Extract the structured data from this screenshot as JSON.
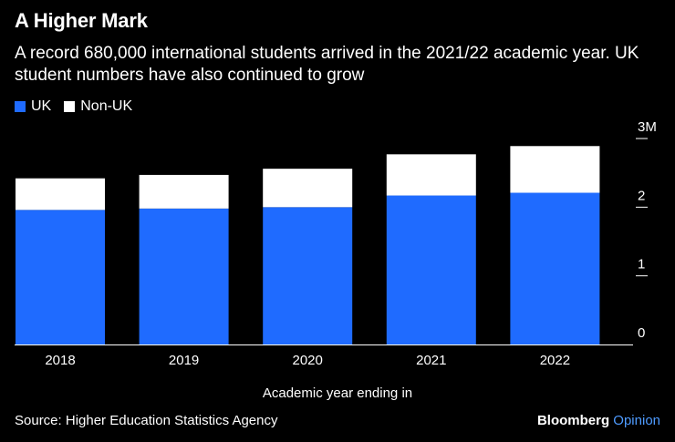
{
  "header": {
    "title": "A Higher Mark",
    "subtitle": "A record 680,000 international students arrived in the 2021/22 academic year. UK student numbers have also continued to grow"
  },
  "legend": {
    "items": [
      {
        "label": "UK",
        "color": "#1f6bff"
      },
      {
        "label": "Non-UK",
        "color": "#ffffff"
      }
    ]
  },
  "footer": {
    "source": "Source: Higher Education Statistics Agency",
    "brand_primary": "Bloomberg",
    "brand_secondary": "Opinion"
  },
  "chart_data": {
    "type": "bar",
    "stacked": true,
    "categories": [
      "2018",
      "2019",
      "2020",
      "2021",
      "2022"
    ],
    "series": [
      {
        "name": "UK",
        "color": "#1f6bff",
        "values": [
          1.96,
          1.98,
          2.0,
          2.17,
          2.21
        ]
      },
      {
        "name": "Non-UK",
        "color": "#ffffff",
        "values": [
          0.46,
          0.49,
          0.56,
          0.6,
          0.68
        ]
      }
    ],
    "xlabel": "Academic year ending in",
    "ylabel": "",
    "ylim": [
      0,
      3
    ],
    "yticks": [
      0,
      1,
      2,
      3
    ],
    "ytick_labels": [
      "0",
      "1",
      "2",
      "3M"
    ],
    "axis_position": "right",
    "grid": false
  }
}
